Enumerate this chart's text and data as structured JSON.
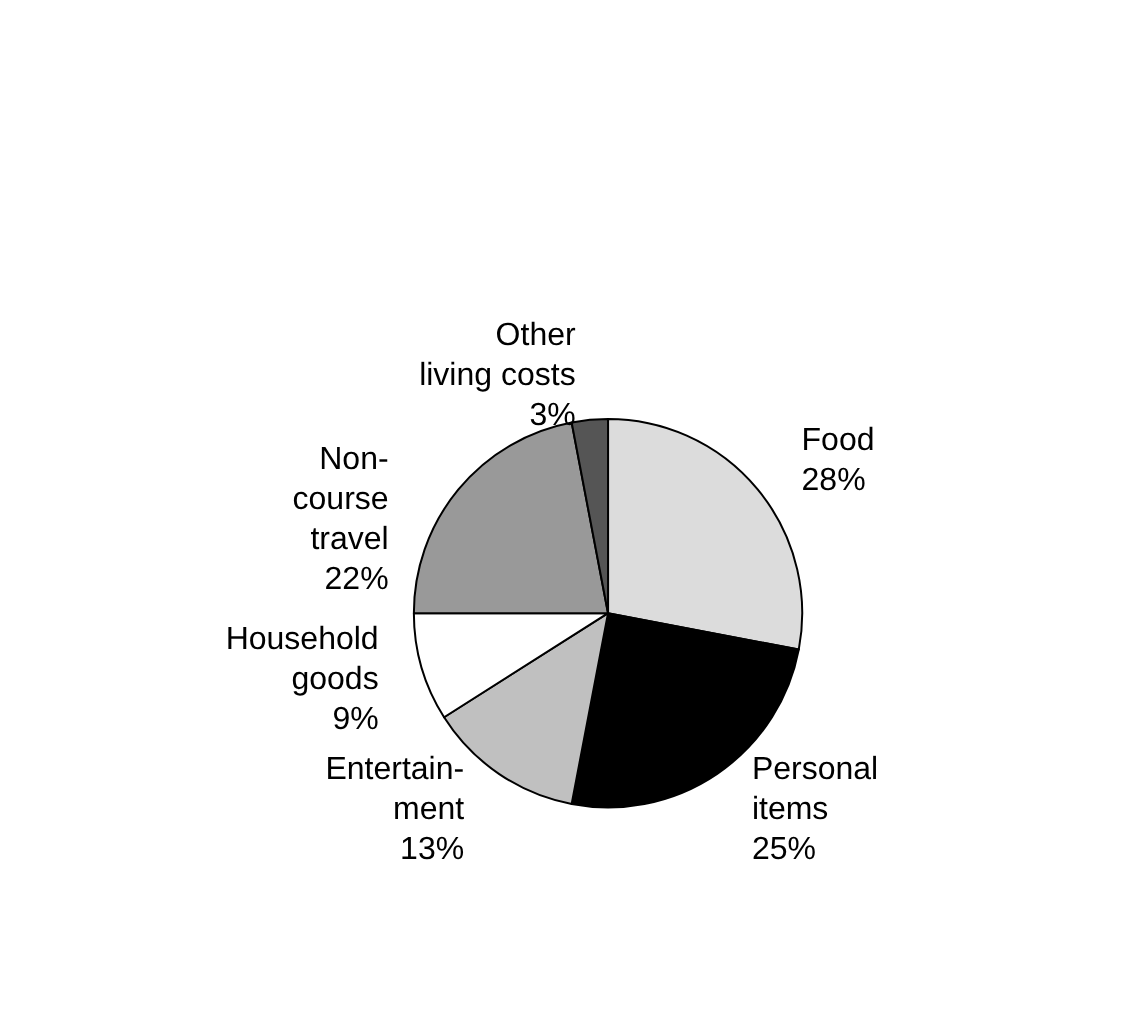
{
  "chart_data": {
    "type": "pie",
    "categories": [
      "Food",
      "Personal\nitems",
      "Entertain-\nment",
      "Household\ngoods",
      "Non-\ncourse\ntravel",
      "Other\nliving costs"
    ],
    "values": [
      28,
      25,
      13,
      9,
      22,
      3
    ],
    "value_labels": [
      "28%",
      "25%",
      "13%",
      "9%",
      "22%",
      "3%"
    ],
    "colors": [
      "#dcdcdc",
      "#000000",
      "#c0c0c0",
      "#ffffff",
      "#999999",
      "#555555"
    ],
    "legend": false
  }
}
